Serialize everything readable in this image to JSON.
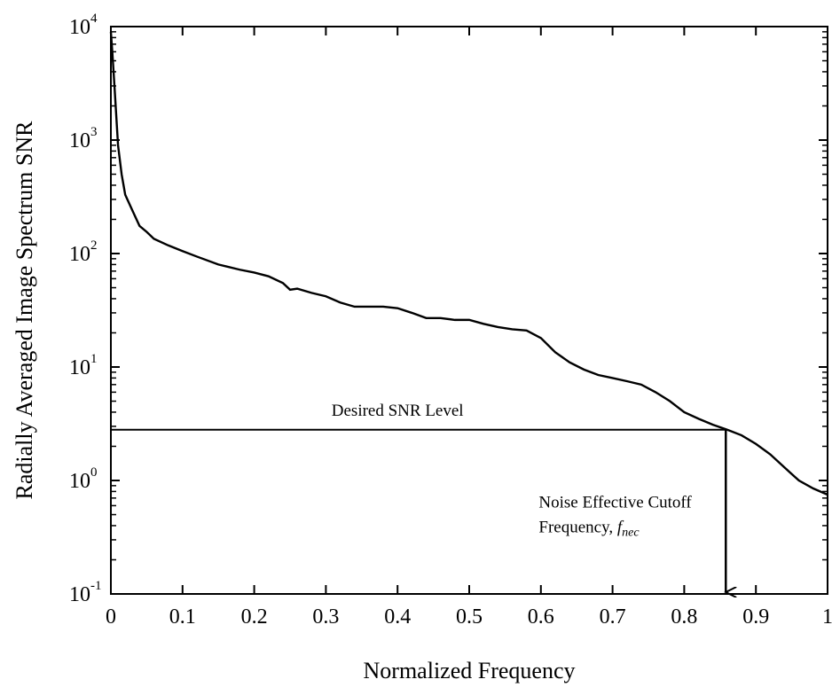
{
  "chart_data": {
    "type": "line",
    "xlabel": "Normalized Frequency",
    "ylabel": "Radially Averaged Image Spectrum SNR",
    "xlim": [
      0,
      1
    ],
    "ylim": [
      0.1,
      10000
    ],
    "yscale": "log",
    "grid": false,
    "x_ticks": [
      {
        "value": 0,
        "label": "0"
      },
      {
        "value": 0.1,
        "label": "0.1"
      },
      {
        "value": 0.2,
        "label": "0.2"
      },
      {
        "value": 0.3,
        "label": "0.3"
      },
      {
        "value": 0.4,
        "label": "0.4"
      },
      {
        "value": 0.5,
        "label": "0.5"
      },
      {
        "value": 0.6,
        "label": "0.6"
      },
      {
        "value": 0.7,
        "label": "0.7"
      },
      {
        "value": 0.8,
        "label": "0.8"
      },
      {
        "value": 0.9,
        "label": "0.9"
      },
      {
        "value": 1,
        "label": "1"
      }
    ],
    "y_ticks": [
      {
        "value": 0.1,
        "base": "10",
        "exp": "-1"
      },
      {
        "value": 1,
        "base": "10",
        "exp": "0"
      },
      {
        "value": 10,
        "base": "10",
        "exp": "1"
      },
      {
        "value": 100,
        "base": "10",
        "exp": "2"
      },
      {
        "value": 1000,
        "base": "10",
        "exp": "3"
      },
      {
        "value": 10000,
        "base": "10",
        "exp": "4"
      }
    ],
    "series": [
      {
        "x": [
          0,
          0.002,
          0.005,
          0.01,
          0.015,
          0.02,
          0.03,
          0.04,
          0.05,
          0.06,
          0.08,
          0.1,
          0.12,
          0.15,
          0.18,
          0.2,
          0.22,
          0.24,
          0.25,
          0.26,
          0.28,
          0.3,
          0.32,
          0.34,
          0.36,
          0.38,
          0.4,
          0.42,
          0.44,
          0.46,
          0.48,
          0.5,
          0.52,
          0.54,
          0.56,
          0.58,
          0.6,
          0.62,
          0.64,
          0.66,
          0.68,
          0.7,
          0.72,
          0.74,
          0.76,
          0.78,
          0.8,
          0.82,
          0.84,
          0.86,
          0.88,
          0.9,
          0.92,
          0.94,
          0.96,
          0.98,
          1.0
        ],
        "y": [
          9000,
          6000,
          3000,
          900,
          500,
          330,
          240,
          175,
          155,
          135,
          118,
          105,
          94,
          80,
          72,
          68,
          63,
          55,
          48,
          49,
          45,
          42,
          37,
          34,
          34,
          34,
          33,
          30,
          27,
          27,
          26,
          26,
          24,
          22.5,
          21.5,
          21,
          18,
          13.5,
          11,
          9.5,
          8.5,
          8,
          7.5,
          7,
          6,
          5,
          4,
          3.5,
          3.1,
          2.8,
          2.5,
          2.1,
          1.7,
          1.3,
          1.0,
          0.85,
          0.75
        ]
      }
    ],
    "annotations": {
      "desired_level_label": "Desired SNR Level",
      "desired_level_value": 2.8,
      "cutoff_label_line1": "Noise Effective Cutoff",
      "cutoff_label_line2_prefix": "Frequency, ",
      "cutoff_label_symbol": "f",
      "cutoff_label_subscript": "nec",
      "cutoff_x": 0.858
    }
  }
}
